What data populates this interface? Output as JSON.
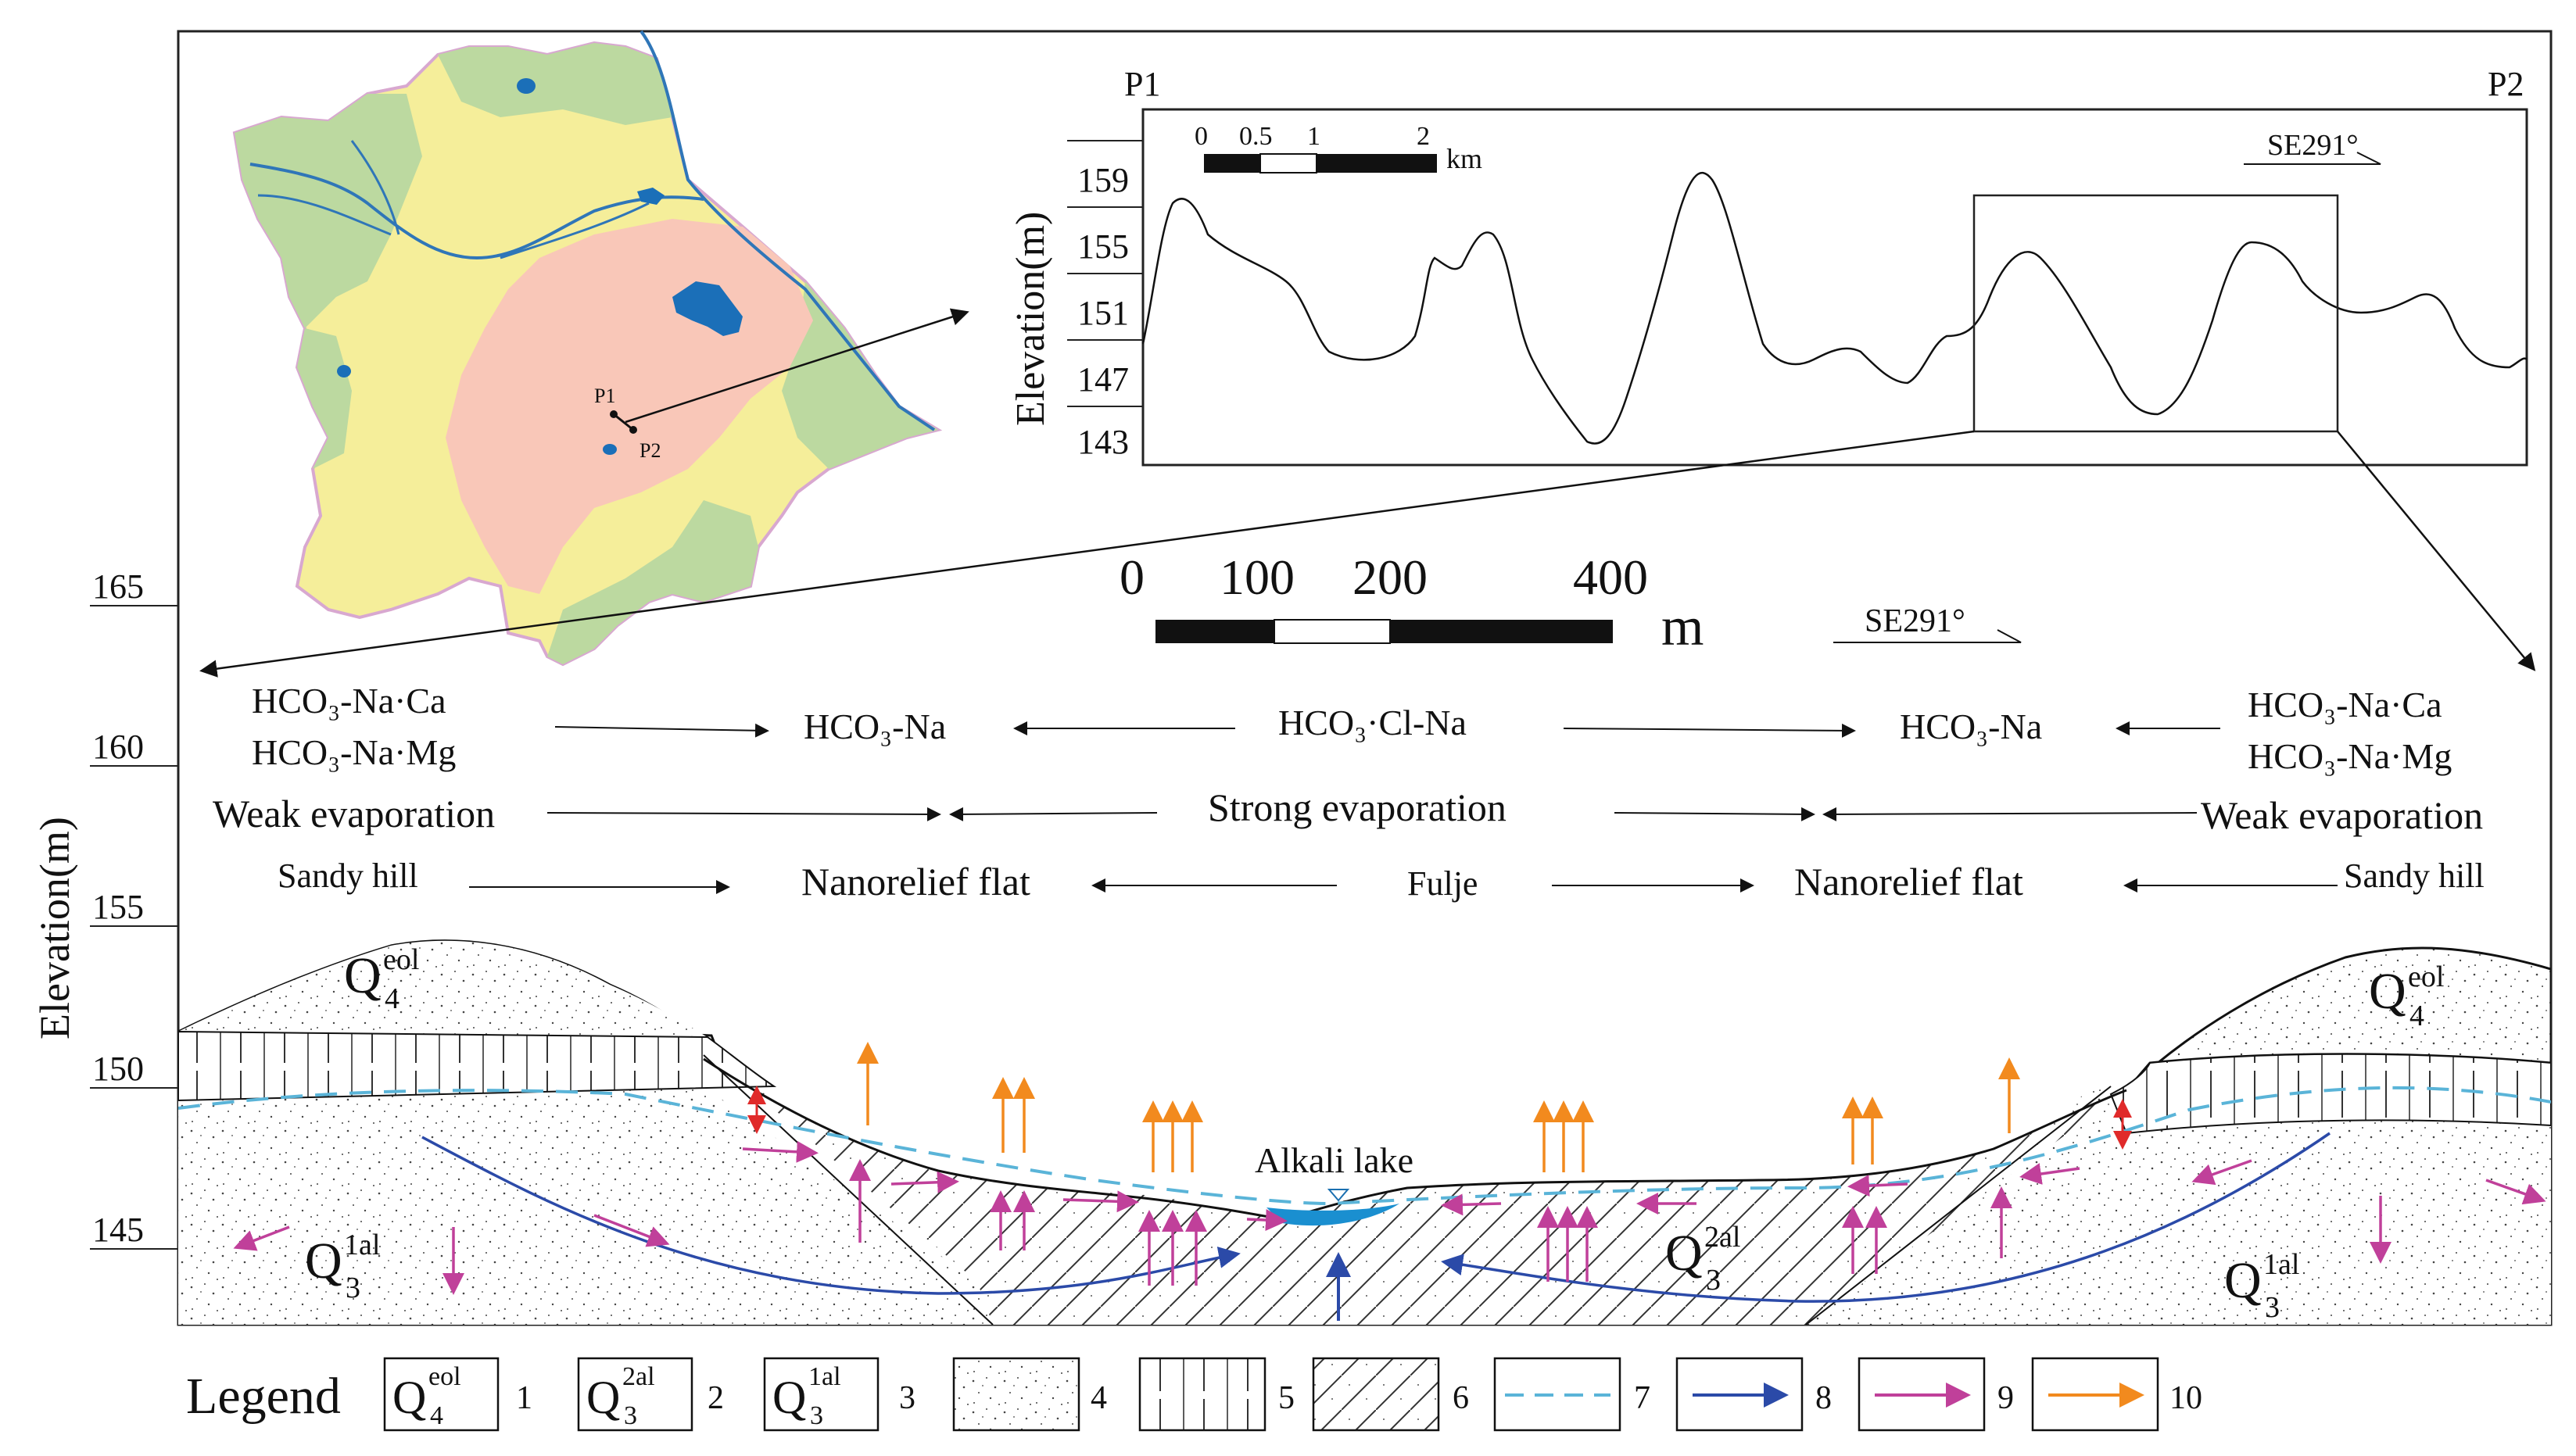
{
  "profile": {
    "start_label": "P1",
    "end_label": "P2",
    "ylabel": "Elevation(m)",
    "yticks": [
      "159",
      "155",
      "151",
      "147",
      "143"
    ],
    "scale_ticks": [
      "0",
      "0.5",
      "1",
      "2"
    ],
    "scale_unit": "km",
    "direction": "SE291°"
  },
  "map": {
    "p1_label": "P1",
    "p2_label": "P2"
  },
  "section": {
    "ylabel": "Elevation(m)",
    "yticks": [
      "165",
      "160",
      "155",
      "150",
      "145"
    ],
    "scale_ticks": [
      "0",
      "100",
      "200",
      "400"
    ],
    "scale_unit": "m",
    "direction": "SE291°",
    "water_types": {
      "left_line1": "HCO₃-Na·Ca",
      "left_line2": "HCO₃-Na·Mg",
      "center_left": "HCO₃-Na",
      "center": "HCO₃·Cl-Na",
      "center_right": "HCO₃-Na",
      "right_line1": "HCO₃-Na·Ca",
      "right_line2": "HCO₃-Na·Mg"
    },
    "evaporation": {
      "left": "Weak evaporation",
      "center": "Strong evaporation",
      "right": "Weak evaporation"
    },
    "landforms": {
      "left": "Sandy hill",
      "center_left": "Nanorelief flat",
      "center": "Fulje",
      "center_right": "Nanorelief flat",
      "right": "Sandy hill"
    },
    "lake_label": "Alkali lake",
    "unit_labels": {
      "q4_main": "Q",
      "q4_sub": "4",
      "q4_sup": "eol",
      "q3al2_main": "Q",
      "q3al2_sub": "3",
      "q3al2_sup": "2al",
      "q3al1_main": "Q",
      "q3al1_sub": "3",
      "q3al1_sup": "1al"
    }
  },
  "legend": {
    "title": "Legend",
    "items": [
      "1",
      "2",
      "3",
      "4",
      "5",
      "6",
      "7",
      "8",
      "9",
      "10"
    ],
    "colors": {
      "flow_blue": "#2b4aa8",
      "flow_magenta": "#c0409a",
      "evap_orange": "#f28a1e",
      "water_table": "#5ab4d8",
      "lake": "#1a8fd0"
    }
  }
}
